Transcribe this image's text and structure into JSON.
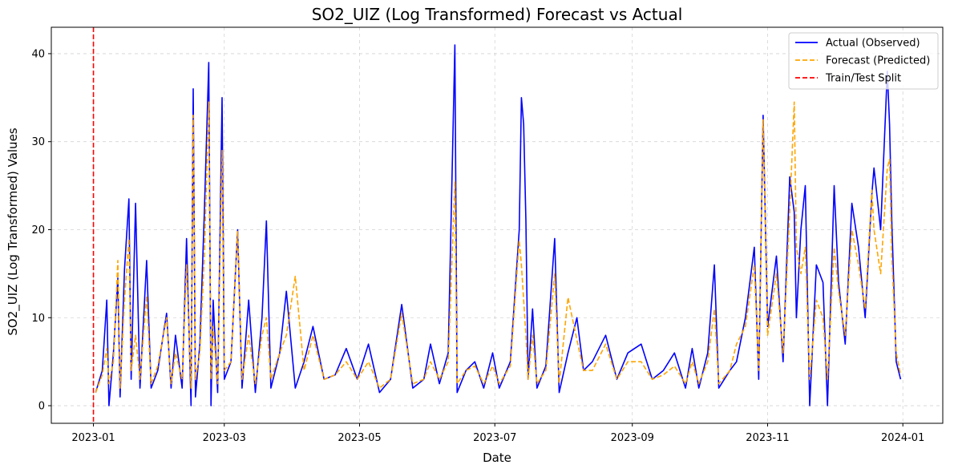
{
  "chart_data": {
    "type": "line",
    "title": "SO2_UIZ (Log Transformed) Forecast vs Actual",
    "xlabel": "Date",
    "ylabel": "SO2_UIZ (Log Transformed) Values",
    "xlim": [
      "2022-12-13",
      "2024-01-19"
    ],
    "ylim": [
      -2,
      43
    ],
    "x_ticks": [
      "2023-01",
      "2023-03",
      "2023-05",
      "2023-07",
      "2023-09",
      "2023-11",
      "2024-01"
    ],
    "y_ticks": [
      0,
      10,
      20,
      30,
      40
    ],
    "grid": true,
    "legend_position": "top-right",
    "split_date": "2023-01-01",
    "series": [
      {
        "name": "Actual (Observed)",
        "color": "#0000ff",
        "style": "solid",
        "points": [
          [
            "2023-01-02",
            1.5
          ],
          [
            "2023-01-05",
            4.0
          ],
          [
            "2023-01-07",
            12.0
          ],
          [
            "2023-01-08",
            0.0
          ],
          [
            "2023-01-10",
            6.0
          ],
          [
            "2023-01-12",
            14.5
          ],
          [
            "2023-01-13",
            1.0
          ],
          [
            "2023-01-15",
            15.5
          ],
          [
            "2023-01-17",
            23.5
          ],
          [
            "2023-01-18",
            3.0
          ],
          [
            "2023-01-20",
            23.0
          ],
          [
            "2023-01-22",
            2.0
          ],
          [
            "2023-01-25",
            16.5
          ],
          [
            "2023-01-27",
            2.0
          ],
          [
            "2023-01-30",
            4.0
          ],
          [
            "2023-02-03",
            10.5
          ],
          [
            "2023-02-05",
            2.0
          ],
          [
            "2023-02-07",
            8.0
          ],
          [
            "2023-02-10",
            2.0
          ],
          [
            "2023-02-12",
            19.0
          ],
          [
            "2023-02-14",
            0.0
          ],
          [
            "2023-02-15",
            36.0
          ],
          [
            "2023-02-16",
            1.0
          ],
          [
            "2023-02-18",
            7.0
          ],
          [
            "2023-02-20",
            22.0
          ],
          [
            "2023-02-22",
            39.0
          ],
          [
            "2023-02-23",
            0.0
          ],
          [
            "2023-02-24",
            12.0
          ],
          [
            "2023-02-26",
            1.5
          ],
          [
            "2023-02-28",
            35.0
          ],
          [
            "2023-03-01",
            3.0
          ],
          [
            "2023-03-04",
            5.0
          ],
          [
            "2023-03-07",
            20.0
          ],
          [
            "2023-03-09",
            2.0
          ],
          [
            "2023-03-12",
            12.0
          ],
          [
            "2023-03-15",
            1.5
          ],
          [
            "2023-03-18",
            10.0
          ],
          [
            "2023-03-20",
            21.0
          ],
          [
            "2023-03-22",
            2.0
          ],
          [
            "2023-03-26",
            6.0
          ],
          [
            "2023-03-29",
            13.0
          ],
          [
            "2023-04-02",
            2.0
          ],
          [
            "2023-04-06",
            5.0
          ],
          [
            "2023-04-10",
            9.0
          ],
          [
            "2023-04-15",
            3.0
          ],
          [
            "2023-04-20",
            3.5
          ],
          [
            "2023-04-25",
            6.5
          ],
          [
            "2023-04-30",
            3.0
          ],
          [
            "2023-05-05",
            7.0
          ],
          [
            "2023-05-10",
            1.5
          ],
          [
            "2023-05-15",
            3.0
          ],
          [
            "2023-05-20",
            11.5
          ],
          [
            "2023-05-25",
            2.0
          ],
          [
            "2023-05-30",
            3.0
          ],
          [
            "2023-06-02",
            7.0
          ],
          [
            "2023-06-06",
            2.5
          ],
          [
            "2023-06-10",
            6.0
          ],
          [
            "2023-06-13",
            41.0
          ],
          [
            "2023-06-14",
            1.5
          ],
          [
            "2023-06-18",
            4.0
          ],
          [
            "2023-06-22",
            5.0
          ],
          [
            "2023-06-26",
            2.0
          ],
          [
            "2023-06-30",
            6.0
          ],
          [
            "2023-07-03",
            2.0
          ],
          [
            "2023-07-08",
            5.0
          ],
          [
            "2023-07-12",
            20.0
          ],
          [
            "2023-07-13",
            35.0
          ],
          [
            "2023-07-14",
            32.0
          ],
          [
            "2023-07-15",
            21.0
          ],
          [
            "2023-07-16",
            3.0
          ],
          [
            "2023-07-18",
            11.0
          ],
          [
            "2023-07-20",
            2.0
          ],
          [
            "2023-07-24",
            4.5
          ],
          [
            "2023-07-28",
            19.0
          ],
          [
            "2023-07-30",
            1.5
          ],
          [
            "2023-08-03",
            6.0
          ],
          [
            "2023-08-07",
            10.0
          ],
          [
            "2023-08-10",
            4.0
          ],
          [
            "2023-08-14",
            5.0
          ],
          [
            "2023-08-20",
            8.0
          ],
          [
            "2023-08-25",
            3.0
          ],
          [
            "2023-08-30",
            6.0
          ],
          [
            "2023-09-05",
            7.0
          ],
          [
            "2023-09-10",
            3.0
          ],
          [
            "2023-09-15",
            4.0
          ],
          [
            "2023-09-20",
            6.0
          ],
          [
            "2023-09-25",
            2.0
          ],
          [
            "2023-09-28",
            6.5
          ],
          [
            "2023-10-01",
            2.0
          ],
          [
            "2023-10-05",
            6.0
          ],
          [
            "2023-10-08",
            16.0
          ],
          [
            "2023-10-10",
            2.0
          ],
          [
            "2023-10-15",
            4.0
          ],
          [
            "2023-10-18",
            5.0
          ],
          [
            "2023-10-22",
            10.0
          ],
          [
            "2023-10-26",
            18.0
          ],
          [
            "2023-10-28",
            3.0
          ],
          [
            "2023-10-30",
            33.0
          ],
          [
            "2023-11-01",
            9.0
          ],
          [
            "2023-11-05",
            17.0
          ],
          [
            "2023-11-08",
            5.0
          ],
          [
            "2023-11-11",
            26.0
          ],
          [
            "2023-11-13",
            22.0
          ],
          [
            "2023-11-14",
            10.0
          ],
          [
            "2023-11-16",
            20.0
          ],
          [
            "2023-11-18",
            25.0
          ],
          [
            "2023-11-20",
            0.0
          ],
          [
            "2023-11-23",
            16.0
          ],
          [
            "2023-11-26",
            14.0
          ],
          [
            "2023-11-28",
            0.0
          ],
          [
            "2023-12-01",
            25.0
          ],
          [
            "2023-12-03",
            14.0
          ],
          [
            "2023-12-06",
            7.0
          ],
          [
            "2023-12-09",
            23.0
          ],
          [
            "2023-12-12",
            18.0
          ],
          [
            "2023-12-15",
            10.0
          ],
          [
            "2023-12-18",
            24.0
          ],
          [
            "2023-12-19",
            27.0
          ],
          [
            "2023-12-22",
            20.0
          ],
          [
            "2023-12-25",
            38.0
          ],
          [
            "2023-12-26",
            32.0
          ],
          [
            "2023-12-27",
            21.0
          ],
          [
            "2023-12-29",
            5.0
          ],
          [
            "2023-12-31",
            3.0
          ]
        ]
      },
      {
        "name": "Forecast (Predicted)",
        "color": "#ffa500",
        "style": "dashed",
        "points": [
          [
            "2023-01-02",
            1.5
          ],
          [
            "2023-01-05",
            3.5
          ],
          [
            "2023-01-07",
            6.5
          ],
          [
            "2023-01-08",
            2.5
          ],
          [
            "2023-01-10",
            5.0
          ],
          [
            "2023-01-12",
            16.5
          ],
          [
            "2023-01-13",
            2.0
          ],
          [
            "2023-01-15",
            12.0
          ],
          [
            "2023-01-17",
            19.0
          ],
          [
            "2023-01-18",
            4.0
          ],
          [
            "2023-01-20",
            8.0
          ],
          [
            "2023-01-22",
            3.0
          ],
          [
            "2023-01-25",
            12.5
          ],
          [
            "2023-01-27",
            2.5
          ],
          [
            "2023-01-30",
            4.5
          ],
          [
            "2023-02-03",
            10.0
          ],
          [
            "2023-02-05",
            2.5
          ],
          [
            "2023-02-07",
            6.0
          ],
          [
            "2023-02-10",
            3.0
          ],
          [
            "2023-02-12",
            16.0
          ],
          [
            "2023-02-14",
            2.0
          ],
          [
            "2023-02-15",
            33.0
          ],
          [
            "2023-02-16",
            3.0
          ],
          [
            "2023-02-18",
            6.0
          ],
          [
            "2023-02-20",
            17.0
          ],
          [
            "2023-02-22",
            34.5
          ],
          [
            "2023-02-23",
            3.0
          ],
          [
            "2023-02-24",
            9.0
          ],
          [
            "2023-02-26",
            2.5
          ],
          [
            "2023-02-28",
            29.0
          ],
          [
            "2023-03-01",
            4.0
          ],
          [
            "2023-03-04",
            5.0
          ],
          [
            "2023-03-07",
            19.8
          ],
          [
            "2023-03-09",
            3.0
          ],
          [
            "2023-03-12",
            8.0
          ],
          [
            "2023-03-15",
            2.5
          ],
          [
            "2023-03-18",
            8.0
          ],
          [
            "2023-03-20",
            10.0
          ],
          [
            "2023-03-22",
            3.0
          ],
          [
            "2023-03-26",
            6.0
          ],
          [
            "2023-03-29",
            8.0
          ],
          [
            "2023-04-02",
            14.7
          ],
          [
            "2023-04-06",
            4.0
          ],
          [
            "2023-04-10",
            8.0
          ],
          [
            "2023-04-15",
            3.0
          ],
          [
            "2023-04-20",
            3.5
          ],
          [
            "2023-04-25",
            5.0
          ],
          [
            "2023-04-30",
            3.0
          ],
          [
            "2023-05-05",
            5.0
          ],
          [
            "2023-05-10",
            2.0
          ],
          [
            "2023-05-15",
            3.0
          ],
          [
            "2023-05-20",
            10.5
          ],
          [
            "2023-05-25",
            2.5
          ],
          [
            "2023-05-30",
            3.0
          ],
          [
            "2023-06-02",
            5.0
          ],
          [
            "2023-06-06",
            3.0
          ],
          [
            "2023-06-10",
            5.0
          ],
          [
            "2023-06-13",
            25.5
          ],
          [
            "2023-06-14",
            2.5
          ],
          [
            "2023-06-18",
            4.0
          ],
          [
            "2023-06-22",
            4.5
          ],
          [
            "2023-06-26",
            2.5
          ],
          [
            "2023-06-30",
            4.5
          ],
          [
            "2023-07-03",
            2.5
          ],
          [
            "2023-07-08",
            4.5
          ],
          [
            "2023-07-12",
            18.8
          ],
          [
            "2023-07-13",
            16.0
          ],
          [
            "2023-07-14",
            12.0
          ],
          [
            "2023-07-15",
            8.0
          ],
          [
            "2023-07-16",
            3.0
          ],
          [
            "2023-07-18",
            8.0
          ],
          [
            "2023-07-20",
            2.5
          ],
          [
            "2023-07-24",
            4.0
          ],
          [
            "2023-07-28",
            15.0
          ],
          [
            "2023-07-30",
            2.5
          ],
          [
            "2023-08-03",
            12.3
          ],
          [
            "2023-08-07",
            7.5
          ],
          [
            "2023-08-10",
            4.0
          ],
          [
            "2023-08-14",
            4.0
          ],
          [
            "2023-08-20",
            7.0
          ],
          [
            "2023-08-25",
            3.0
          ],
          [
            "2023-08-30",
            5.0
          ],
          [
            "2023-09-05",
            5.0
          ],
          [
            "2023-09-10",
            3.0
          ],
          [
            "2023-09-15",
            3.5
          ],
          [
            "2023-09-20",
            4.5
          ],
          [
            "2023-09-25",
            2.5
          ],
          [
            "2023-09-28",
            5.0
          ],
          [
            "2023-10-01",
            2.5
          ],
          [
            "2023-10-05",
            5.0
          ],
          [
            "2023-10-08",
            11.0
          ],
          [
            "2023-10-10",
            2.5
          ],
          [
            "2023-10-15",
            4.0
          ],
          [
            "2023-10-18",
            7.0
          ],
          [
            "2023-10-22",
            9.0
          ],
          [
            "2023-10-26",
            16.0
          ],
          [
            "2023-10-28",
            4.0
          ],
          [
            "2023-10-30",
            32.5
          ],
          [
            "2023-11-01",
            8.0
          ],
          [
            "2023-11-05",
            15.0
          ],
          [
            "2023-11-08",
            6.0
          ],
          [
            "2023-11-11",
            22.0
          ],
          [
            "2023-11-13",
            34.5
          ],
          [
            "2023-11-14",
            18.0
          ],
          [
            "2023-11-16",
            15.0
          ],
          [
            "2023-11-18",
            18.0
          ],
          [
            "2023-11-20",
            3.0
          ],
          [
            "2023-11-23",
            12.0
          ],
          [
            "2023-11-26",
            10.0
          ],
          [
            "2023-11-28",
            3.0
          ],
          [
            "2023-12-01",
            18.0
          ],
          [
            "2023-12-03",
            13.0
          ],
          [
            "2023-12-06",
            8.0
          ],
          [
            "2023-12-09",
            20.0
          ],
          [
            "2023-12-12",
            16.0
          ],
          [
            "2023-12-15",
            11.0
          ],
          [
            "2023-12-18",
            24.5
          ],
          [
            "2023-12-19",
            20.0
          ],
          [
            "2023-12-22",
            15.0
          ],
          [
            "2023-12-25",
            27.0
          ],
          [
            "2023-12-26",
            28.0
          ],
          [
            "2023-12-27",
            17.0
          ],
          [
            "2023-12-29",
            6.0
          ],
          [
            "2023-12-31",
            3.5
          ]
        ]
      },
      {
        "name": "Train/Test Split",
        "color": "#ff0000",
        "style": "dashed"
      }
    ]
  }
}
